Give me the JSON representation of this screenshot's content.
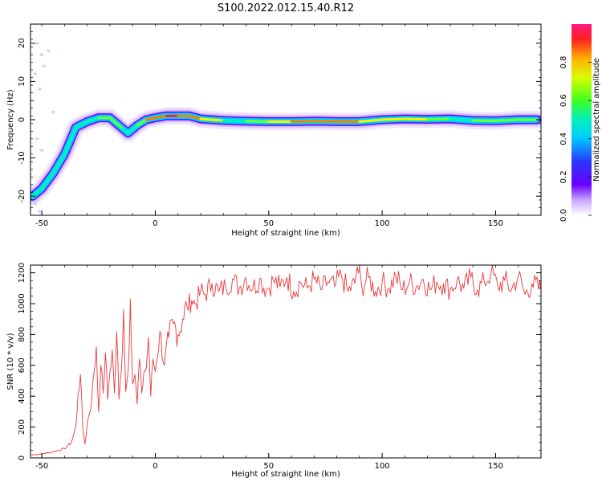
{
  "title": "S100.2022.012.15.40.R12",
  "colors": {
    "snr_line": "#e8393b",
    "ridge": [
      "#6a00ff",
      "#2a36ff",
      "#00c8ff",
      "#00f0c0",
      "#70ff30",
      "#fff000",
      "#ff7a00",
      "#ff1a3a"
    ]
  },
  "chart_data": [
    {
      "type": "heatmap",
      "title": "",
      "xlabel": "Height of straight line (km)",
      "ylabel": "Frequency (Hz)",
      "xlim": [
        -55,
        170
      ],
      "ylim": [
        -25,
        25
      ],
      "xticks": [
        -50,
        0,
        50,
        100,
        150
      ],
      "yticks": [
        -20,
        -10,
        0,
        10,
        20
      ],
      "grid": false,
      "colorbar": {
        "label": "Normalized spectral amplitude",
        "range": [
          0,
          1
        ],
        "ticks": [
          0.0,
          0.2,
          0.4,
          0.6,
          0.8
        ]
      },
      "ridge": {
        "x": [
          -54,
          -50,
          -45,
          -40,
          -35,
          -30,
          -25,
          -20,
          -15,
          -12,
          -8,
          -4,
          0,
          5,
          10,
          15,
          20,
          30,
          40,
          50,
          60,
          70,
          80,
          90,
          100,
          110,
          120,
          130,
          140,
          150,
          160,
          168
        ],
        "y": [
          -20,
          -18,
          -14,
          -9,
          -2,
          -0.5,
          0.5,
          0.5,
          -2,
          -3.5,
          -1.5,
          0,
          0.5,
          1,
          1,
          1,
          0.2,
          -0.2,
          -0.4,
          -0.5,
          -0.5,
          -0.4,
          -0.5,
          -0.5,
          0,
          0.2,
          0.1,
          0.2,
          -0.2,
          -0.3,
          0,
          0
        ],
        "amplitude": [
          0.15,
          0.2,
          0.3,
          0.3,
          0.3,
          0.35,
          0.5,
          0.6,
          0.4,
          0.4,
          0.55,
          0.7,
          0.9,
          0.95,
          0.95,
          0.9,
          0.8,
          0.5,
          0.45,
          0.7,
          0.8,
          0.85,
          0.85,
          0.75,
          0.6,
          0.9,
          0.6,
          0.5,
          0.45,
          0.55,
          0.5,
          0.5
        ]
      }
    },
    {
      "type": "line",
      "title": "",
      "xlabel": "Height of straight line (km)",
      "ylabel": "SNR (10 * v/v)",
      "xlim": [
        -55,
        170
      ],
      "ylim": [
        0,
        1250
      ],
      "xticks": [
        -50,
        0,
        50,
        100,
        150
      ],
      "yticks": [
        0,
        200,
        400,
        600,
        800,
        1000,
        1200
      ],
      "grid": false,
      "series": [
        {
          "x": [
            -55,
            -50,
            -45,
            -40,
            -37,
            -35,
            -34,
            -33,
            -32,
            -31,
            -30,
            -28,
            -27,
            -26,
            -25,
            -24,
            -23,
            -22,
            -21,
            -20,
            -19,
            -18,
            -17,
            -16,
            -15,
            -14,
            -13,
            -12,
            -11,
            -10,
            -9,
            -8,
            -7,
            -6,
            -5,
            -4,
            -3,
            -2,
            -1,
            0,
            2,
            4,
            6,
            8,
            10,
            12,
            14,
            16,
            18,
            20,
            22,
            25,
            28,
            31,
            34,
            37,
            40,
            43,
            46,
            49,
            52,
            55,
            58,
            61,
            64,
            67,
            70,
            73,
            76,
            79,
            82,
            85,
            88,
            89,
            91,
            94,
            97,
            100,
            103,
            106,
            109,
            112,
            115,
            118,
            121,
            124,
            127,
            130,
            133,
            136,
            139,
            142,
            145,
            148,
            151,
            154,
            157,
            160,
            163,
            166,
            170
          ],
          "values": [
            20,
            25,
            40,
            60,
            100,
            200,
            420,
            540,
            200,
            90,
            220,
            380,
            550,
            720,
            300,
            600,
            420,
            680,
            380,
            560,
            700,
            420,
            820,
            380,
            560,
            960,
            430,
            560,
            1030,
            480,
            540,
            350,
            640,
            420,
            560,
            580,
            780,
            400,
            640,
            560,
            820,
            600,
            780,
            870,
            800,
            900,
            980,
            1020,
            1000,
            1080,
            1060,
            1130,
            1080,
            1110,
            1160,
            1100,
            1170,
            1100,
            1160,
            1090,
            1150,
            1110,
            1170,
            1080,
            1140,
            1100,
            1160,
            1090,
            1140,
            1110,
            1180,
            1080,
            1130,
            1240,
            1110,
            1170,
            1080,
            1140,
            1100,
            1180,
            1090,
            1140,
            1110,
            1160,
            1090,
            1140,
            1130,
            1090,
            1150,
            1100,
            1170,
            1090,
            1140,
            1200,
            1110,
            1150,
            1090,
            1180,
            1060,
            1130,
            1090
          ]
        }
      ]
    }
  ]
}
